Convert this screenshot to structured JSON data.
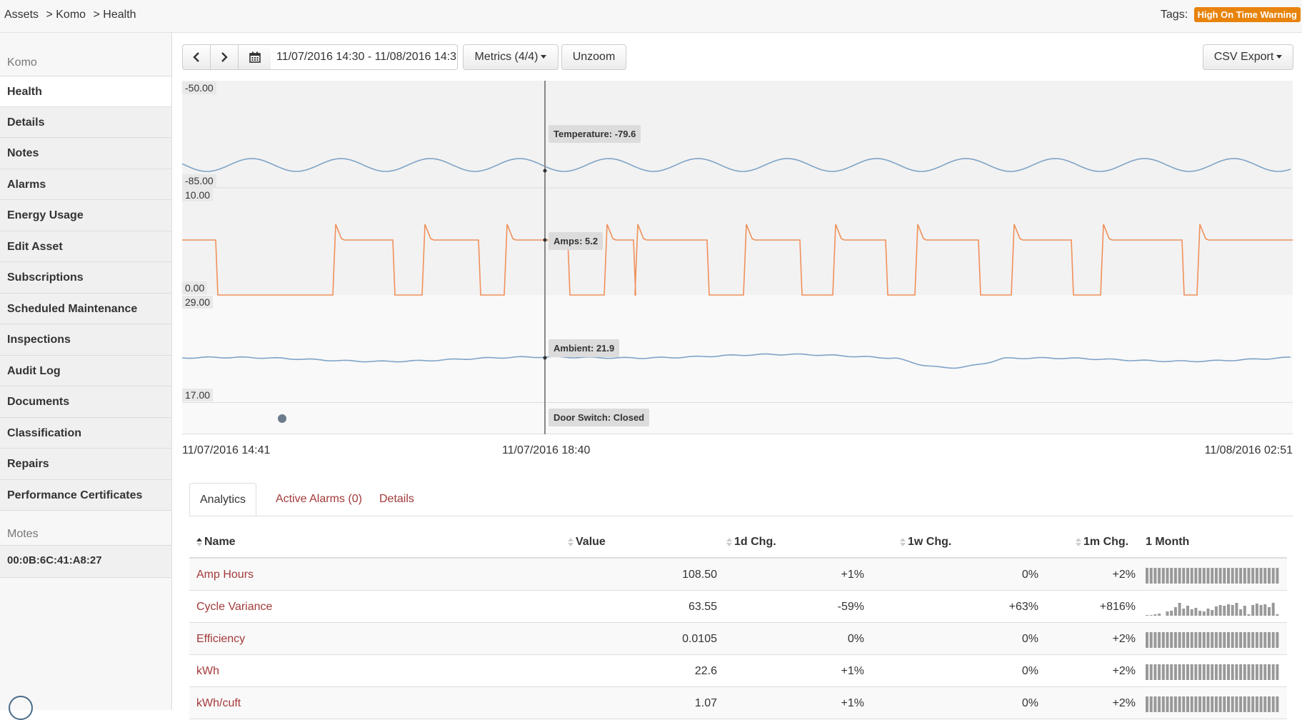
{
  "breadcrumb": [
    "Assets",
    "> Komo",
    "> Health"
  ],
  "tags": {
    "label": "Tags:",
    "badge": "High On Time Warning",
    "badge_color": "#e8830c"
  },
  "sidebar": {
    "heading": "Komo",
    "items": [
      {
        "label": "Health",
        "active": true
      },
      {
        "label": "Details"
      },
      {
        "label": "Notes"
      },
      {
        "label": "Alarms"
      },
      {
        "label": "Energy Usage"
      },
      {
        "label": "Edit Asset"
      },
      {
        "label": "Subscriptions"
      },
      {
        "label": "Scheduled Maintenance"
      },
      {
        "label": "Inspections"
      },
      {
        "label": "Audit Log"
      },
      {
        "label": "Documents"
      },
      {
        "label": "Classification"
      },
      {
        "label": "Repairs"
      },
      {
        "label": "Performance Certificates"
      }
    ],
    "motes_heading": "Motes",
    "mote": "00:0B:6C:41:A8:27"
  },
  "toolbar": {
    "prev_icon": "chevron-left-icon",
    "next_icon": "chevron-right-icon",
    "calendar_icon": "calendar-icon",
    "date_range": "11/07/2016 14:30 - 11/08/2016 14:3",
    "metrics": "Metrics (4/4)",
    "unzoom": "Unzoom",
    "csv_export": "CSV Export"
  },
  "chart_data": {
    "type": "line",
    "x_labels": [
      "11/07/2016 14:41",
      "11/07/2016 18:40",
      "11/08/2016 02:51"
    ],
    "series": [
      {
        "name": "Temperature",
        "ymax": "-50.00",
        "ymin": "-85.00",
        "cursor_label": "Temperature: -79.6",
        "color": "#7fa3c8"
      },
      {
        "name": "Amps",
        "ymax": "10.00",
        "ymin": "0.00",
        "cursor_label": "Amps: 5.2",
        "color": "#f0905a"
      },
      {
        "name": "Ambient",
        "ymax": "29.00",
        "ymin": "17.00",
        "cursor_label": "Ambient: 21.9",
        "color": "#7fa3c8"
      },
      {
        "name": "Door Switch",
        "cursor_label": "Door Switch: Closed",
        "color": "#6b7b8b"
      }
    ]
  },
  "tabs": [
    "Analytics",
    "Active Alarms (0)",
    "Details"
  ],
  "table": {
    "headers": [
      "Name",
      "Value",
      "1d Chg.",
      "1w Chg.",
      "1m Chg.",
      "1 Month"
    ],
    "rows": [
      {
        "name": "Amp Hours",
        "value": "108.50",
        "d": "+1%",
        "w": "0%",
        "m": "+2%"
      },
      {
        "name": "Cycle Variance",
        "value": "63.55",
        "d": "-59%",
        "w": "+63%",
        "m": "+816%"
      },
      {
        "name": "Efficiency",
        "value": "0.0105",
        "d": "0%",
        "w": "0%",
        "m": "+2%"
      },
      {
        "name": "kWh",
        "value": "22.6",
        "d": "+1%",
        "w": "0%",
        "m": "+2%"
      },
      {
        "name": "kWh/cuft",
        "value": "1.07",
        "d": "+1%",
        "w": "0%",
        "m": "+2%"
      }
    ]
  }
}
